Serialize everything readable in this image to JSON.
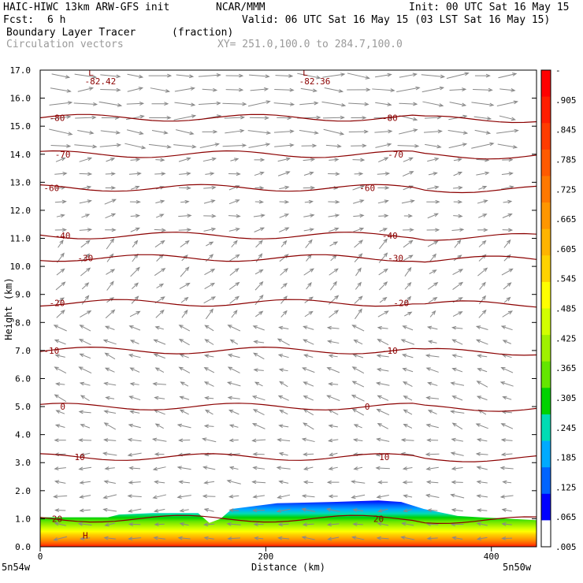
{
  "header": {
    "model": "HAIC-HIWC 13km ARW-GFS init",
    "org": "NCAR/MMM",
    "init": "Init: 00 UTC Sat 16 May 15",
    "fcst_label": "Fcst:",
    "fcst_value": "6 h",
    "valid": "Valid: 06 UTC Sat 16 May 15 (03 LST Sat 16 May 15)",
    "field1": "Boundary Layer Tracer",
    "field1_unit": "(fraction)",
    "field2": "Circulation vectors",
    "xy": "XY= 251.0,100.0 to 284.7,100.0"
  },
  "chart_data": {
    "type": "heatmap",
    "subtype": "vertical cross-section",
    "xlabel": "Distance (km)",
    "ylabel": "Height (km)",
    "xlim": [
      0,
      440
    ],
    "ylim": [
      0,
      17
    ],
    "xticks": [
      0,
      200,
      400
    ],
    "yticks": [
      0.0,
      1.0,
      2.0,
      3.0,
      4.0,
      5.0,
      6.0,
      7.0,
      8.0,
      9.0,
      10.0,
      11.0,
      12.0,
      13.0,
      14.0,
      15.0,
      16.0,
      17.0
    ],
    "x_end_labels": [
      "5n54w",
      "5n50w"
    ],
    "tracer_top_km": {
      "x": [
        0,
        30,
        60,
        70,
        100,
        140,
        150,
        160,
        170,
        210,
        260,
        300,
        320,
        340,
        370,
        390,
        440
      ],
      "top": [
        1.05,
        1.05,
        1.05,
        1.15,
        1.2,
        1.2,
        0.85,
        1.0,
        1.35,
        1.55,
        1.6,
        1.65,
        1.6,
        1.35,
        1.1,
        1.05,
        0.95
      ]
    },
    "colorbar": {
      "labels": [
        "-",
        ".905",
        ".845",
        ".785",
        ".725",
        ".665",
        ".605",
        ".545",
        ".485",
        ".425",
        ".365",
        ".305",
        ".245",
        ".185",
        ".125",
        ".065",
        ".005"
      ],
      "colors": [
        "#ff0000",
        "#ff1e00",
        "#ff3c00",
        "#ff5a00",
        "#ff7800",
        "#ff9600",
        "#ffb400",
        "#ffd200",
        "#ffff00",
        "#d2ff00",
        "#a0f000",
        "#64e600",
        "#00d200",
        "#00dcb4",
        "#00aaff",
        "#0064ff",
        "#0000ff",
        "#ffffff"
      ]
    },
    "temperature_contours_c": {
      "values": [
        -80,
        -70,
        -60,
        -40,
        -30,
        -20,
        -10,
        0,
        10,
        20
      ],
      "heights_km": [
        15.3,
        14.0,
        12.8,
        11.1,
        10.3,
        8.7,
        7.0,
        5.0,
        3.2,
        1.0
      ],
      "label_near_x_km": [
        [
          15,
          310
        ],
        [
          20,
          315
        ],
        [
          10,
          290
        ],
        [
          20,
          310
        ],
        [
          40,
          315
        ],
        [
          15,
          320
        ],
        [
          10,
          310
        ],
        [
          20,
          290
        ],
        [
          35,
          305
        ],
        [
          15,
          300
        ]
      ]
    },
    "extrema_labels": [
      {
        "mark": "L",
        "value": "-82.42",
        "x_km": 45,
        "height_km": 16.8
      },
      {
        "mark": "L",
        "value": "-82.36",
        "x_km": 235,
        "height_km": 16.8
      },
      {
        "mark": "H",
        "value": "",
        "x_km": 40,
        "height_km": 0.3
      }
    ],
    "vector_color": "#888888",
    "contour_color": "#8b0000"
  }
}
